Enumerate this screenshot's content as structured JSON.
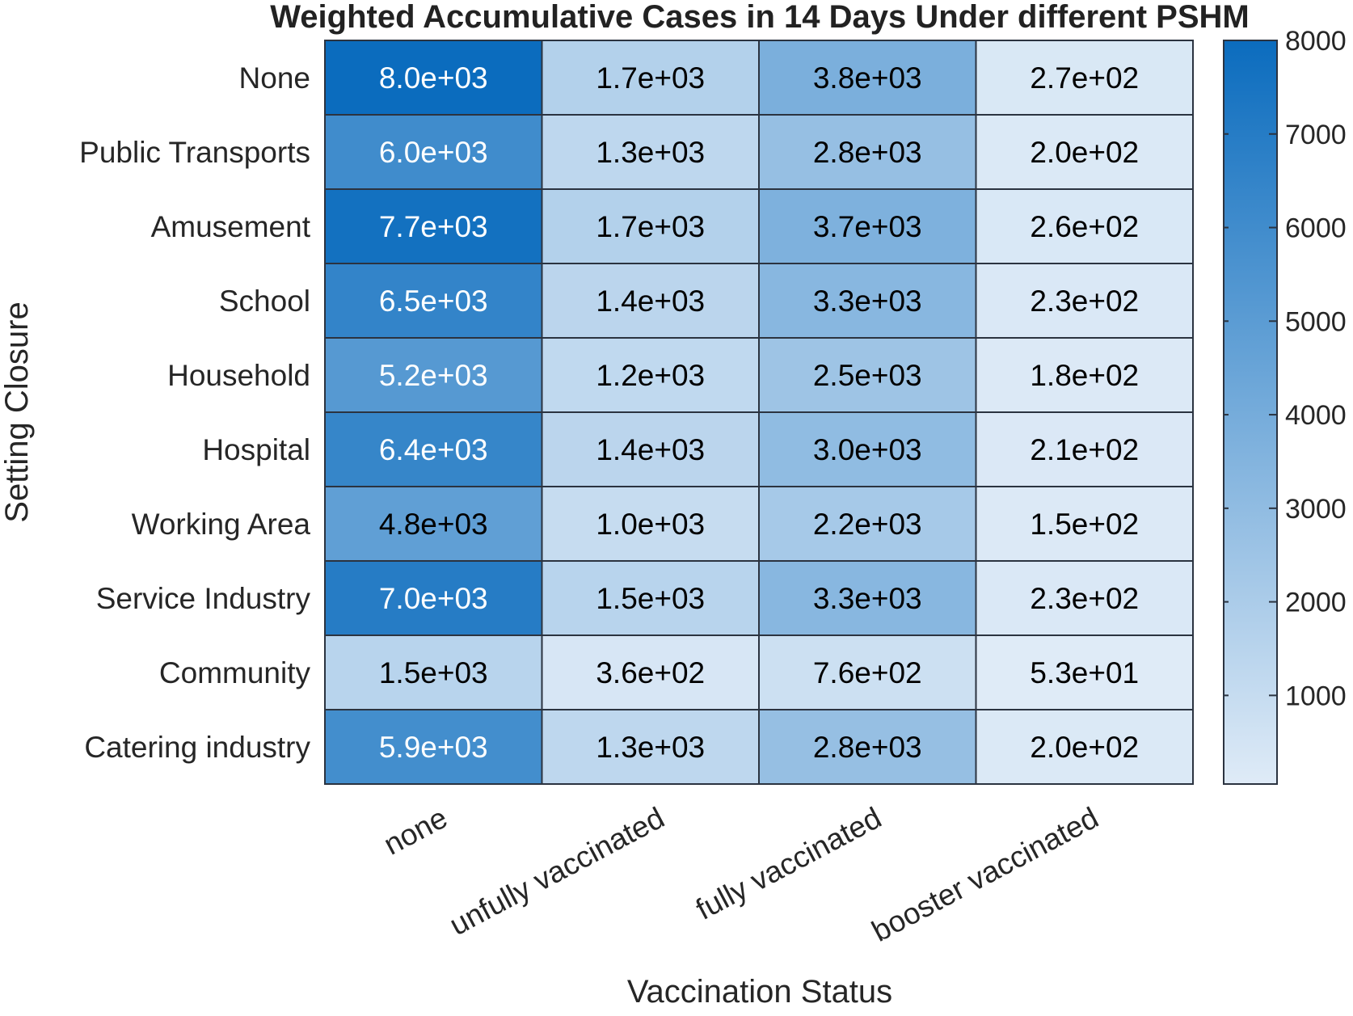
{
  "chart_data": {
    "type": "heatmap",
    "title": "Weighted Accumulative Cases in 14 Days Under different PSHM",
    "xlabel": "Vaccination Status",
    "ylabel": "Setting Closure",
    "x_categories": [
      "none",
      "unfully vaccinated",
      "fully vaccinated",
      "booster vaccinated"
    ],
    "y_categories": [
      "None",
      "Public Transports",
      "Amusement",
      "School",
      "Household",
      "Hospital",
      "Working Area",
      "Service Industry",
      "Community",
      "Catering industry"
    ],
    "values": [
      [
        8000,
        1700,
        3800,
        270
      ],
      [
        6000,
        1300,
        2800,
        200
      ],
      [
        7700,
        1700,
        3700,
        260
      ],
      [
        6500,
        1400,
        3300,
        230
      ],
      [
        5200,
        1200,
        2500,
        180
      ],
      [
        6400,
        1400,
        3000,
        210
      ],
      [
        4800,
        1000,
        2200,
        150
      ],
      [
        7000,
        1500,
        3300,
        230
      ],
      [
        1500,
        360,
        760,
        53
      ],
      [
        5900,
        1300,
        2800,
        200
      ]
    ],
    "cell_labels": [
      [
        "8.0e+03",
        "1.7e+03",
        "3.8e+03",
        "2.7e+02"
      ],
      [
        "6.0e+03",
        "1.3e+03",
        "2.8e+03",
        "2.0e+02"
      ],
      [
        "7.7e+03",
        "1.7e+03",
        "3.7e+03",
        "2.6e+02"
      ],
      [
        "6.5e+03",
        "1.4e+03",
        "3.3e+03",
        "2.3e+02"
      ],
      [
        "5.2e+03",
        "1.2e+03",
        "2.5e+03",
        "1.8e+02"
      ],
      [
        "6.4e+03",
        "1.4e+03",
        "3.0e+03",
        "2.1e+02"
      ],
      [
        "4.8e+03",
        "1.0e+03",
        "2.2e+03",
        "1.5e+02"
      ],
      [
        "7.0e+03",
        "1.5e+03",
        "3.3e+03",
        "2.3e+02"
      ],
      [
        "1.5e+03",
        "3.6e+02",
        "7.6e+02",
        "5.3e+01"
      ],
      [
        "5.9e+03",
        "1.3e+03",
        "2.8e+03",
        "2.0e+02"
      ]
    ],
    "colorbar": {
      "min": 53,
      "max": 8000,
      "ticks": [
        1000,
        2000,
        3000,
        4000,
        5000,
        6000,
        7000,
        8000
      ],
      "tick_labels": [
        "1000",
        "2000",
        "3000",
        "4000",
        "5000",
        "6000",
        "7000",
        "8000"
      ]
    },
    "colors": {
      "low": "#dfebf7",
      "high": "#0b6cbe",
      "border": "#2b3340",
      "text_dark": "#000000",
      "text_light": "#ffffff"
    },
    "grid": true,
    "legend": "colorbar-right"
  }
}
